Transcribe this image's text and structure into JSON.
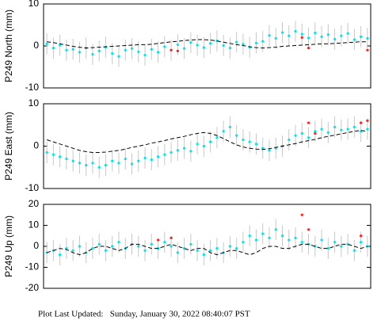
{
  "chart_data": [
    {
      "type": "scatter",
      "ylabel": "P249 North (mm)",
      "ylim": [
        -10,
        10
      ],
      "yticks": [
        -10,
        0,
        10
      ],
      "categories": [
        null,
        null,
        null,
        null,
        null,
        null,
        null,
        null,
        null,
        null,
        null,
        null,
        null,
        null,
        null,
        null,
        null,
        null,
        null,
        null,
        null,
        null,
        null,
        null,
        null,
        null,
        null,
        null,
        null,
        null,
        null,
        null,
        null,
        null,
        null,
        null,
        null,
        null,
        null,
        null,
        null,
        null,
        null,
        null,
        null,
        null,
        null,
        null,
        null,
        null
      ],
      "series": [
        {
          "name": "observations",
          "color": "#00e5ee",
          "error": 2.5,
          "values": [
            0.5,
            -0.5,
            0.2,
            -1,
            -0.8,
            -1.5,
            -0.5,
            -2,
            -1.2,
            -0.3,
            -1.8,
            -2.5,
            -1,
            -0.6,
            -1.4,
            -2.2,
            -0.8,
            -1.5,
            -0.2,
            -1,
            0.3,
            -0.6,
            0.8,
            0.2,
            -0.4,
            0.6,
            1.2,
            0.1,
            -0.5,
            0.9,
            0.4,
            -0.3,
            0.7,
            1.1,
            2.5,
            1.8,
            3.2,
            2.4,
            3.5,
            2.8,
            1.9,
            3.1,
            2.2,
            2.7,
            1.6,
            2.4,
            3,
            1.5,
            2.2,
            1.8
          ]
        },
        {
          "name": "outliers",
          "color": "#ff2020",
          "values": [
            null,
            null,
            null,
            null,
            null,
            null,
            null,
            null,
            null,
            null,
            null,
            null,
            null,
            null,
            null,
            null,
            null,
            null,
            null,
            -1,
            -1.2,
            null,
            null,
            null,
            null,
            null,
            null,
            null,
            null,
            null,
            null,
            null,
            null,
            null,
            null,
            null,
            null,
            null,
            null,
            2,
            -0.5,
            null,
            null,
            null,
            null,
            null,
            null,
            null,
            null,
            -1
          ]
        },
        {
          "name": "model",
          "color": "#000000",
          "values": [
            1,
            0.8,
            0.5,
            0.2,
            -0.1,
            -0.3,
            -0.5,
            -0.4,
            -0.3,
            -0.2,
            -0.1,
            0,
            0.1,
            0.2,
            0.3,
            0.3,
            0.4,
            0.6,
            0.8,
            1,
            1.1,
            1.3,
            1.4,
            1.5,
            1.5,
            1.4,
            1.2,
            0.9,
            0.6,
            0.3,
            0.1,
            -0.2,
            -0.4,
            -0.5,
            -0.4,
            -0.3,
            -0.1,
            0,
            0.1,
            0.2,
            0.3,
            0.4,
            0.5,
            0.5,
            0.6,
            0.7,
            0.8,
            0.9,
            1,
            1
          ]
        }
      ]
    },
    {
      "type": "scatter",
      "ylabel": "P249 East (mm)",
      "ylim": [
        -10,
        10
      ],
      "yticks": [
        -10,
        0,
        10
      ],
      "categories": [
        null,
        null,
        null,
        null,
        null,
        null,
        null,
        null,
        null,
        null,
        null,
        null,
        null,
        null,
        null,
        null,
        null,
        null,
        null,
        null,
        null,
        null,
        null,
        null,
        null,
        null,
        null,
        null,
        null,
        null,
        null,
        null,
        null,
        null,
        null,
        null,
        null,
        null,
        null,
        null,
        null,
        null,
        null,
        null,
        null,
        null,
        null,
        null,
        null,
        null
      ],
      "series": [
        {
          "name": "observations",
          "color": "#00e5ee",
          "error": 2.5,
          "values": [
            -1.5,
            -2,
            -2.5,
            -3,
            -3.5,
            -4,
            -4.5,
            -4,
            -5,
            -4.5,
            -3.5,
            -4,
            -3,
            -4.2,
            -3.5,
            -2.8,
            -3.2,
            -2.5,
            -2,
            -1.5,
            -1,
            -0.5,
            -1.2,
            0.5,
            0,
            1,
            2,
            3.5,
            4.5,
            2.5,
            1.5,
            1,
            0.5,
            -0.5,
            -1,
            -0.5,
            0,
            1.5,
            2.5,
            3,
            2,
            3.5,
            4,
            3.2,
            4.5,
            3.8,
            4,
            4.5,
            3.5,
            4
          ]
        },
        {
          "name": "outliers",
          "color": "#ff2020",
          "values": [
            null,
            null,
            null,
            null,
            null,
            null,
            null,
            null,
            null,
            null,
            null,
            null,
            null,
            null,
            null,
            null,
            null,
            null,
            null,
            null,
            null,
            null,
            null,
            null,
            null,
            null,
            null,
            null,
            null,
            null,
            null,
            null,
            null,
            null,
            null,
            null,
            null,
            null,
            null,
            null,
            5.5,
            3,
            null,
            null,
            null,
            null,
            null,
            null,
            5.5,
            6
          ]
        },
        {
          "name": "model",
          "color": "#000000",
          "values": [
            1.5,
            1,
            0.5,
            0,
            -0.5,
            -1,
            -1.3,
            -1.5,
            -1.5,
            -1.4,
            -1.2,
            -1,
            -0.7,
            -0.3,
            0,
            0.3,
            0.7,
            1,
            1.3,
            1.7,
            2,
            2.3,
            2.7,
            3,
            3.2,
            3,
            2.5,
            1.8,
            1,
            0.3,
            -0.2,
            -0.5,
            -0.7,
            -0.8,
            -0.6,
            -0.3,
            0,
            0.3,
            0.6,
            1,
            1.3,
            1.6,
            2,
            2.3,
            2.6,
            2.9,
            3.2,
            3.5,
            3.7,
            3.5
          ]
        }
      ]
    },
    {
      "type": "scatter",
      "ylabel": "P249 Up (mm)",
      "ylim": [
        -20,
        20
      ],
      "yticks": [
        -20,
        -10,
        0,
        10,
        20
      ],
      "categories": [
        null,
        null,
        null,
        null,
        null,
        null,
        null,
        null,
        null,
        null,
        null,
        null,
        null,
        null,
        null,
        null,
        null,
        null,
        null,
        null,
        null,
        null,
        null,
        null,
        null,
        null,
        null,
        null,
        null,
        null,
        null,
        null,
        null,
        null,
        null,
        null,
        null,
        null,
        null,
        null,
        null,
        null,
        null,
        null,
        null,
        null,
        null,
        null,
        null,
        null
      ],
      "series": [
        {
          "name": "observations",
          "color": "#00e5ee",
          "error": 5,
          "values": [
            -3,
            -2,
            -4,
            -1,
            -2,
            0,
            -3,
            -1,
            1,
            -2,
            0,
            2,
            -1,
            1,
            0,
            -2,
            1,
            -1,
            2,
            0,
            -3,
            -1,
            1,
            -2,
            -4,
            -2,
            -1,
            -3,
            0,
            -1,
            2,
            5,
            3,
            6,
            4,
            8,
            5,
            3,
            4,
            2,
            1,
            0,
            3,
            -1,
            2,
            0,
            1,
            -2,
            2,
            0
          ]
        },
        {
          "name": "outliers",
          "color": "#ff2020",
          "values": [
            null,
            null,
            null,
            null,
            null,
            null,
            null,
            null,
            null,
            null,
            null,
            null,
            null,
            null,
            null,
            null,
            null,
            3,
            null,
            4,
            null,
            null,
            null,
            null,
            null,
            null,
            null,
            null,
            null,
            null,
            null,
            null,
            null,
            null,
            null,
            null,
            null,
            null,
            null,
            15,
            8,
            null,
            null,
            null,
            null,
            null,
            null,
            null,
            5,
            null
          ]
        },
        {
          "name": "model",
          "color": "#000000",
          "values": [
            -3,
            -2,
            -1,
            -1.5,
            -3,
            -4,
            -3,
            -1,
            0,
            0,
            -1,
            -2,
            -1,
            1,
            1,
            0,
            -1,
            -1,
            0,
            1,
            0,
            -1,
            -2,
            -1,
            -1,
            -3,
            -4,
            -3,
            -2,
            -2,
            -3,
            -4,
            -3,
            -1,
            0,
            0,
            -1,
            -1,
            0,
            1,
            1,
            0,
            -1,
            -1,
            0,
            1,
            1,
            0,
            -1,
            0
          ]
        }
      ]
    }
  ],
  "footer": "Plot Last Updated:   Sunday, January 30, 2022 08:40:07 PST"
}
